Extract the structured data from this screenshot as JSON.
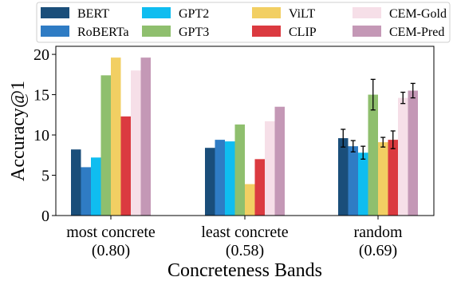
{
  "chart_data": {
    "type": "bar",
    "title": "",
    "xlabel": "Concreteness Bands",
    "ylabel": "Accuracy@1",
    "ylim": [
      0,
      21
    ],
    "yticks": [
      0,
      5,
      10,
      15,
      20
    ],
    "grid": false,
    "legend_position": "top",
    "categories": [
      {
        "name": "most concrete",
        "score": "(0.80)"
      },
      {
        "name": "least concrete",
        "score": "(0.58)"
      },
      {
        "name": "random",
        "score": "(0.69)"
      }
    ],
    "series": [
      {
        "name": "BERT",
        "color": "#1a4e7a",
        "values": [
          8.2,
          8.4,
          9.6
        ],
        "errors": [
          null,
          null,
          1.1
        ]
      },
      {
        "name": "RoBERTa",
        "color": "#2f7cc4",
        "values": [
          6.0,
          9.4,
          8.6
        ],
        "errors": [
          null,
          null,
          0.7
        ]
      },
      {
        "name": "GPT2",
        "color": "#0fbdf0",
        "values": [
          7.2,
          9.2,
          7.8
        ],
        "errors": [
          null,
          null,
          0.8
        ]
      },
      {
        "name": "GPT3",
        "color": "#8fbf6e",
        "values": [
          17.4,
          11.3,
          15.0
        ],
        "errors": [
          null,
          null,
          1.9
        ]
      },
      {
        "name": "ViLT",
        "color": "#f2cf63",
        "values": [
          19.6,
          3.9,
          9.1
        ],
        "errors": [
          null,
          null,
          0.6
        ]
      },
      {
        "name": "CLIP",
        "color": "#db3a40",
        "values": [
          12.3,
          7.0,
          9.4
        ],
        "errors": [
          null,
          null,
          1.1
        ]
      },
      {
        "name": "CEM-Gold",
        "color": "#f6dfe8",
        "values": [
          18.0,
          11.7,
          14.6
        ],
        "errors": [
          null,
          null,
          0.7
        ]
      },
      {
        "name": "CEM-Pred",
        "color": "#c498b6",
        "values": [
          19.6,
          13.5,
          15.5
        ],
        "errors": [
          null,
          null,
          0.9
        ]
      }
    ]
  }
}
